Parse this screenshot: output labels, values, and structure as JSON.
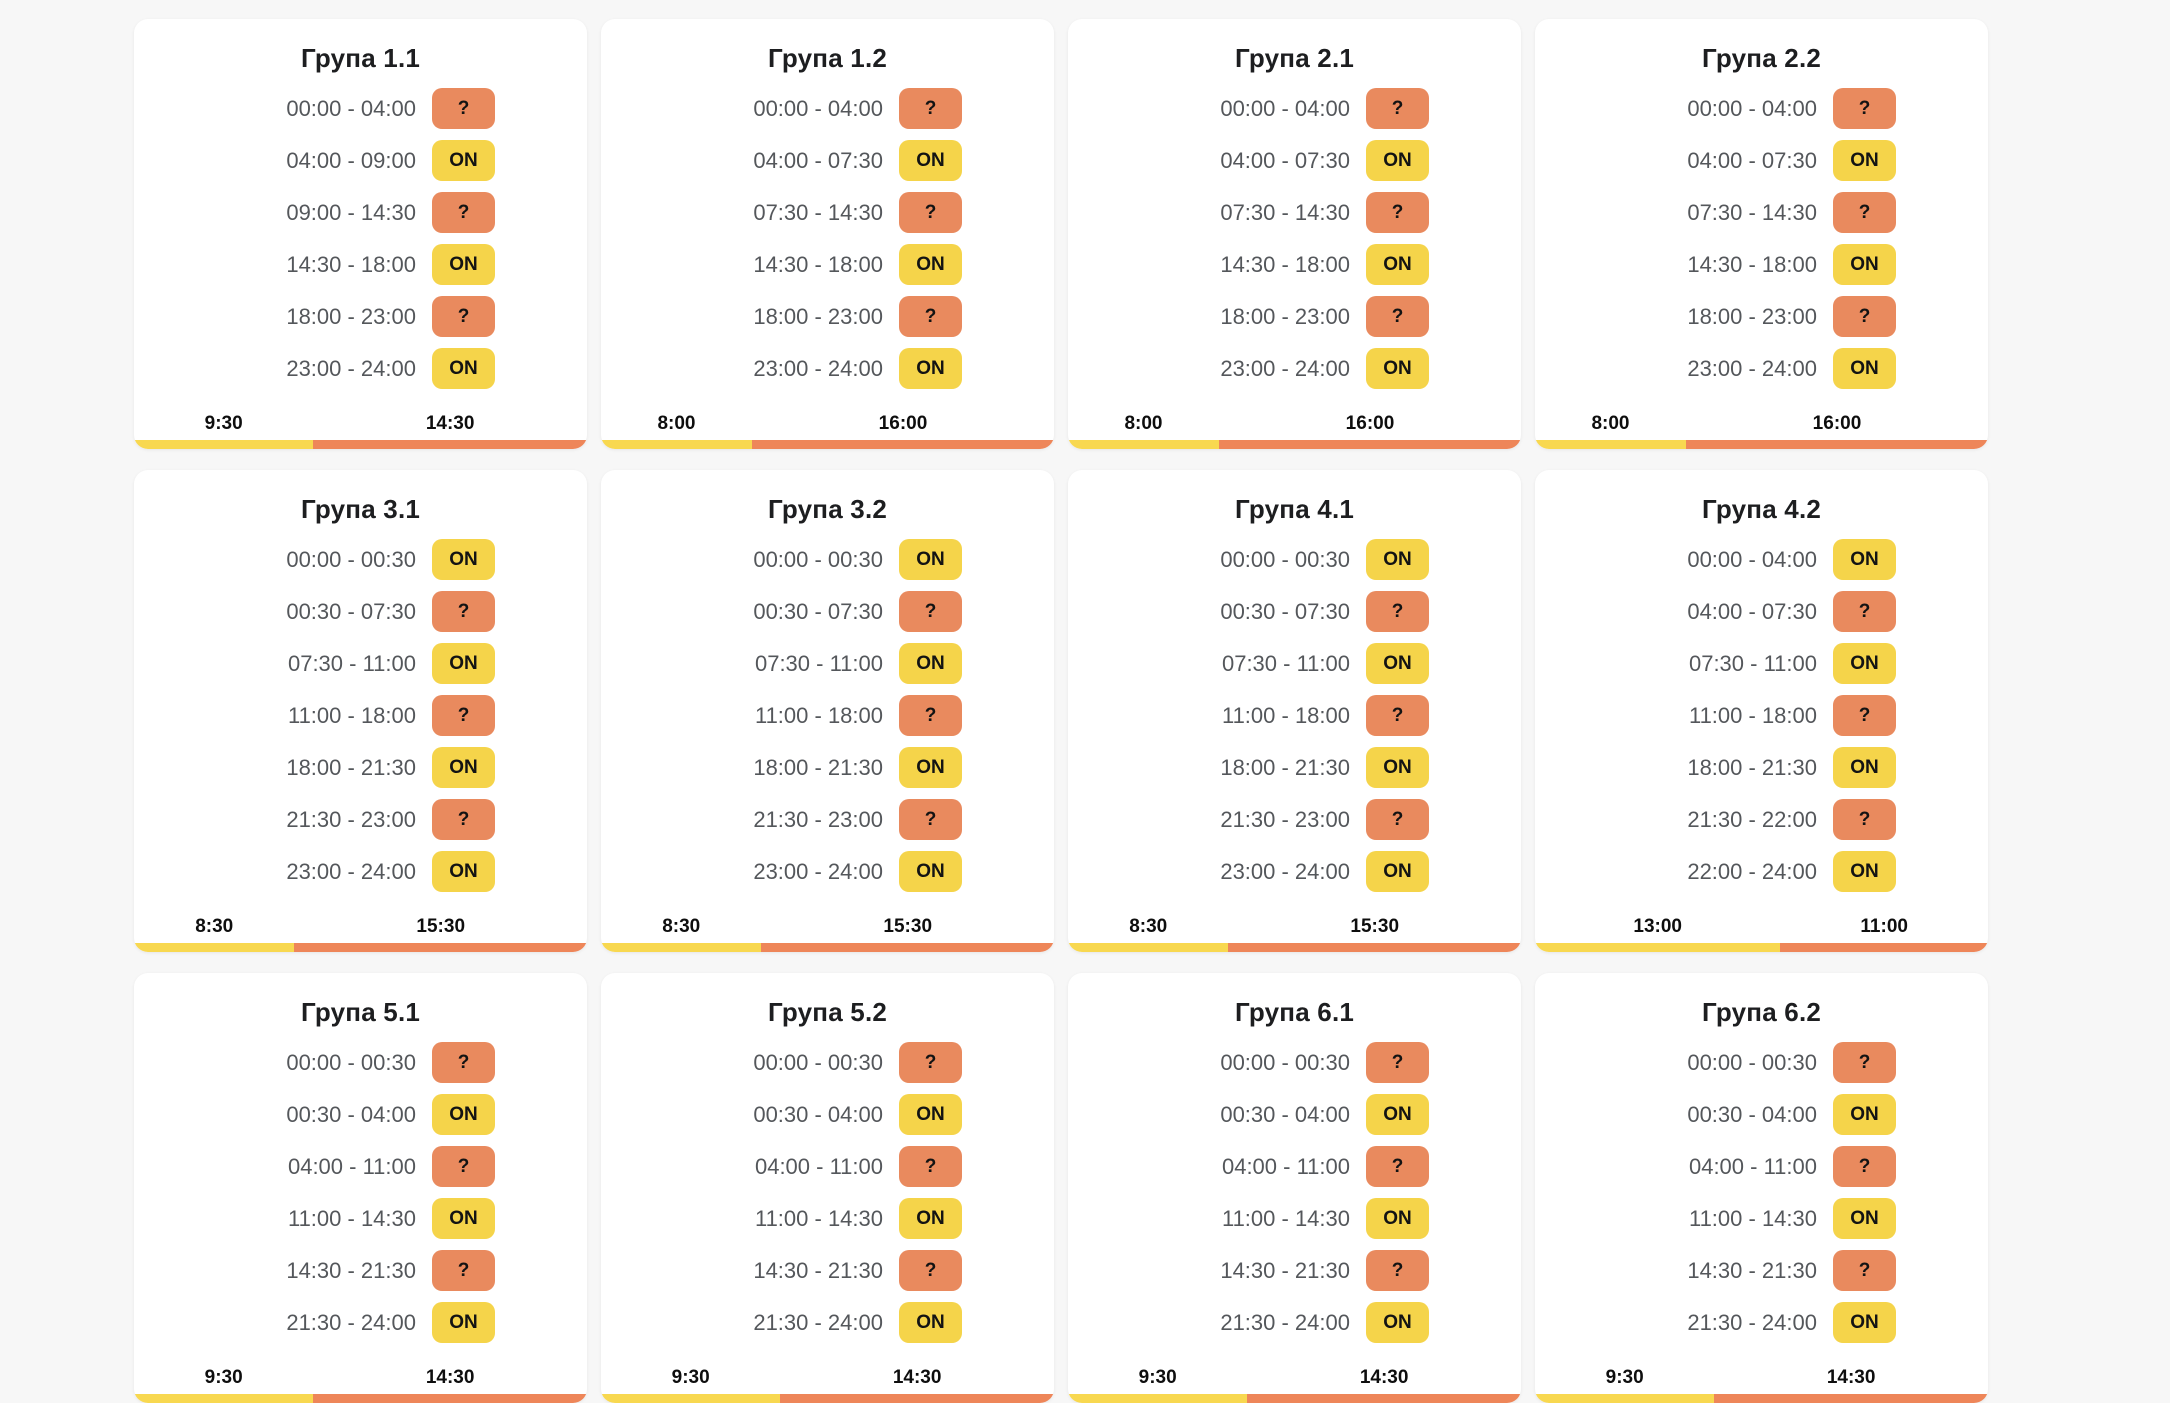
{
  "page": {
    "background": "#F7F7F7",
    "card_background": "#FFFFFF"
  },
  "states": {
    "on": "ON",
    "unknown": "?"
  },
  "colors": {
    "button_on": "#F5D44A",
    "button_unknown": "#E98A5E",
    "bar_on": "#F8D850",
    "bar_unknown": "#EE8659",
    "title_text": "#1D1E20",
    "time_text": "#54575B",
    "button_text": "#131313",
    "summary_text": "#0E0E0E"
  },
  "cards": [
    {
      "title": "Група 1.1",
      "rows": [
        {
          "time": "00:00 - 04:00",
          "state": "?"
        },
        {
          "time": "04:00 - 09:00",
          "state": "ON"
        },
        {
          "time": "09:00 - 14:30",
          "state": "?"
        },
        {
          "time": "14:30 - 18:00",
          "state": "ON"
        },
        {
          "time": "18:00 - 23:00",
          "state": "?"
        },
        {
          "time": "23:00 - 24:00",
          "state": "ON"
        }
      ],
      "summary": {
        "on_total": "9:30",
        "unknown_total": "14:30"
      }
    },
    {
      "title": "Група 1.2",
      "rows": [
        {
          "time": "00:00 - 04:00",
          "state": "?"
        },
        {
          "time": "04:00 - 07:30",
          "state": "ON"
        },
        {
          "time": "07:30 - 14:30",
          "state": "?"
        },
        {
          "time": "14:30 - 18:00",
          "state": "ON"
        },
        {
          "time": "18:00 - 23:00",
          "state": "?"
        },
        {
          "time": "23:00 - 24:00",
          "state": "ON"
        }
      ],
      "summary": {
        "on_total": "8:00",
        "unknown_total": "16:00"
      }
    },
    {
      "title": "Група 2.1",
      "rows": [
        {
          "time": "00:00 - 04:00",
          "state": "?"
        },
        {
          "time": "04:00 - 07:30",
          "state": "ON"
        },
        {
          "time": "07:30 - 14:30",
          "state": "?"
        },
        {
          "time": "14:30 - 18:00",
          "state": "ON"
        },
        {
          "time": "18:00 - 23:00",
          "state": "?"
        },
        {
          "time": "23:00 - 24:00",
          "state": "ON"
        }
      ],
      "summary": {
        "on_total": "8:00",
        "unknown_total": "16:00"
      }
    },
    {
      "title": "Група 2.2",
      "rows": [
        {
          "time": "00:00 - 04:00",
          "state": "?"
        },
        {
          "time": "04:00 - 07:30",
          "state": "ON"
        },
        {
          "time": "07:30 - 14:30",
          "state": "?"
        },
        {
          "time": "14:30 - 18:00",
          "state": "ON"
        },
        {
          "time": "18:00 - 23:00",
          "state": "?"
        },
        {
          "time": "23:00 - 24:00",
          "state": "ON"
        }
      ],
      "summary": {
        "on_total": "8:00",
        "unknown_total": "16:00"
      }
    },
    {
      "title": "Група 3.1",
      "rows": [
        {
          "time": "00:00 - 00:30",
          "state": "ON"
        },
        {
          "time": "00:30 - 07:30",
          "state": "?"
        },
        {
          "time": "07:30 - 11:00",
          "state": "ON"
        },
        {
          "time": "11:00 - 18:00",
          "state": "?"
        },
        {
          "time": "18:00 - 21:30",
          "state": "ON"
        },
        {
          "time": "21:30 - 23:00",
          "state": "?"
        },
        {
          "time": "23:00 - 24:00",
          "state": "ON"
        }
      ],
      "summary": {
        "on_total": "8:30",
        "unknown_total": "15:30"
      }
    },
    {
      "title": "Група 3.2",
      "rows": [
        {
          "time": "00:00 - 00:30",
          "state": "ON"
        },
        {
          "time": "00:30 - 07:30",
          "state": "?"
        },
        {
          "time": "07:30 - 11:00",
          "state": "ON"
        },
        {
          "time": "11:00 - 18:00",
          "state": "?"
        },
        {
          "time": "18:00 - 21:30",
          "state": "ON"
        },
        {
          "time": "21:30 - 23:00",
          "state": "?"
        },
        {
          "time": "23:00 - 24:00",
          "state": "ON"
        }
      ],
      "summary": {
        "on_total": "8:30",
        "unknown_total": "15:30"
      }
    },
    {
      "title": "Група 4.1",
      "rows": [
        {
          "time": "00:00 - 00:30",
          "state": "ON"
        },
        {
          "time": "00:30 - 07:30",
          "state": "?"
        },
        {
          "time": "07:30 - 11:00",
          "state": "ON"
        },
        {
          "time": "11:00 - 18:00",
          "state": "?"
        },
        {
          "time": "18:00 - 21:30",
          "state": "ON"
        },
        {
          "time": "21:30 - 23:00",
          "state": "?"
        },
        {
          "time": "23:00 - 24:00",
          "state": "ON"
        }
      ],
      "summary": {
        "on_total": "8:30",
        "unknown_total": "15:30"
      }
    },
    {
      "title": "Група 4.2",
      "rows": [
        {
          "time": "00:00 - 04:00",
          "state": "ON"
        },
        {
          "time": "04:00 - 07:30",
          "state": "?"
        },
        {
          "time": "07:30 - 11:00",
          "state": "ON"
        },
        {
          "time": "11:00 - 18:00",
          "state": "?"
        },
        {
          "time": "18:00 - 21:30",
          "state": "ON"
        },
        {
          "time": "21:30 - 22:00",
          "state": "?"
        },
        {
          "time": "22:00 - 24:00",
          "state": "ON"
        }
      ],
      "summary": {
        "on_total": "13:00",
        "unknown_total": "11:00"
      }
    },
    {
      "title": "Група 5.1",
      "rows": [
        {
          "time": "00:00 - 00:30",
          "state": "?"
        },
        {
          "time": "00:30 - 04:00",
          "state": "ON"
        },
        {
          "time": "04:00 - 11:00",
          "state": "?"
        },
        {
          "time": "11:00 - 14:30",
          "state": "ON"
        },
        {
          "time": "14:30 - 21:30",
          "state": "?"
        },
        {
          "time": "21:30 - 24:00",
          "state": "ON"
        }
      ],
      "summary": {
        "on_total": "9:30",
        "unknown_total": "14:30"
      }
    },
    {
      "title": "Група 5.2",
      "rows": [
        {
          "time": "00:00 - 00:30",
          "state": "?"
        },
        {
          "time": "00:30 - 04:00",
          "state": "ON"
        },
        {
          "time": "04:00 - 11:00",
          "state": "?"
        },
        {
          "time": "11:00 - 14:30",
          "state": "ON"
        },
        {
          "time": "14:30 - 21:30",
          "state": "?"
        },
        {
          "time": "21:30 - 24:00",
          "state": "ON"
        }
      ],
      "summary": {
        "on_total": "9:30",
        "unknown_total": "14:30"
      }
    },
    {
      "title": "Група 6.1",
      "rows": [
        {
          "time": "00:00 - 00:30",
          "state": "?"
        },
        {
          "time": "00:30 - 04:00",
          "state": "ON"
        },
        {
          "time": "04:00 - 11:00",
          "state": "?"
        },
        {
          "time": "11:00 - 14:30",
          "state": "ON"
        },
        {
          "time": "14:30 - 21:30",
          "state": "?"
        },
        {
          "time": "21:30 - 24:00",
          "state": "ON"
        }
      ],
      "summary": {
        "on_total": "9:30",
        "unknown_total": "14:30"
      }
    },
    {
      "title": "Група 6.2",
      "rows": [
        {
          "time": "00:00 - 00:30",
          "state": "?"
        },
        {
          "time": "00:30 - 04:00",
          "state": "ON"
        },
        {
          "time": "04:00 - 11:00",
          "state": "?"
        },
        {
          "time": "11:00 - 14:30",
          "state": "ON"
        },
        {
          "time": "14:30 - 21:30",
          "state": "?"
        },
        {
          "time": "21:30 - 24:00",
          "state": "ON"
        }
      ],
      "summary": {
        "on_total": "9:30",
        "unknown_total": "14:30"
      }
    }
  ]
}
